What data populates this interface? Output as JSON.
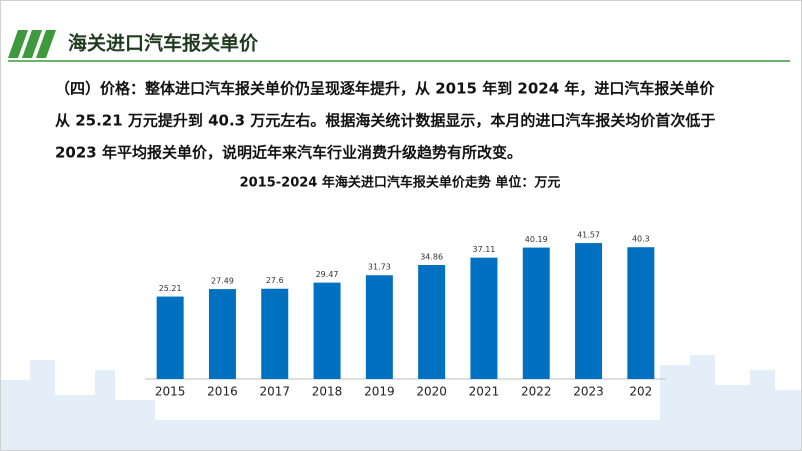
{
  "header": {
    "title": "海关进口汽车报关单价"
  },
  "paragraph": {
    "lines": [
      "（四）价格：整体进口汽车报关单价仍呈现逐年提升，从 2015 年到 2024 年，进口汽车报关单价",
      "从 25.21 万元提升到 40.3 万元左右。根据海关统计数据显示，本月的进口汽车报关均价首次低于",
      "2023 年平均报关单价，说明近年来汽车行业消费升级趋势有所改变。"
    ]
  },
  "chart_data": {
    "type": "bar",
    "title": "2015-2024 年海关进口汽车报关单价走势  单位：万元",
    "categories": [
      "2015",
      "2016",
      "2017",
      "2018",
      "2019",
      "2020",
      "2021",
      "2022",
      "2023",
      "202"
    ],
    "values": [
      25.21,
      27.49,
      27.6,
      29.47,
      31.73,
      34.86,
      37.11,
      40.19,
      41.57,
      40.3
    ],
    "color": "#0070c0"
  }
}
